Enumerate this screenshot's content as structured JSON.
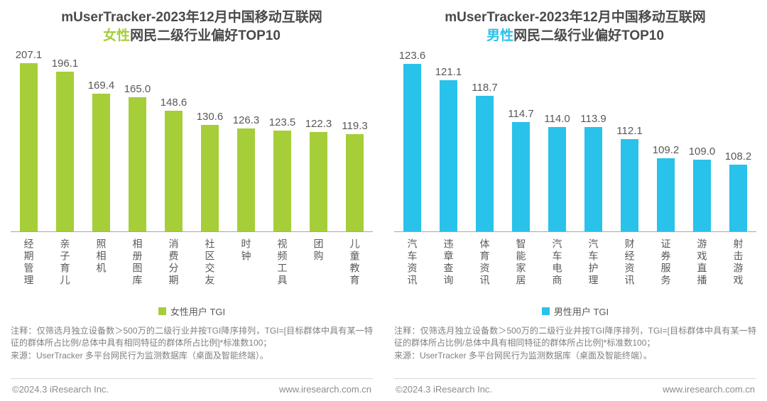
{
  "chart_data": [
    {
      "type": "bar",
      "title_line1": "mUserTracker-2023年12月中国移动互联网",
      "title_highlight": "女性",
      "title_rest": "网民二级行业偏好TOP10",
      "legend_label": "女性用户 TGI",
      "legend_position": "bottom",
      "grid": false,
      "bar_color": "#a5ce39",
      "categories": [
        "经期管理",
        "亲子育儿",
        "照相机",
        "相册图库",
        "消费分期",
        "社区交友",
        "时钟",
        "视频工具",
        "团购",
        "儿童教育"
      ],
      "values": [
        207.1,
        196.1,
        169.4,
        165.0,
        148.6,
        130.6,
        126.3,
        123.5,
        122.3,
        119.3
      ],
      "ylabel": "TGI",
      "ylim": [
        0,
        225
      ]
    },
    {
      "type": "bar",
      "title_line1": "mUserTracker-2023年12月中国移动互联网",
      "title_highlight": "男性",
      "title_rest": "网民二级行业偏好TOP10",
      "legend_label": "男性用户 TGI",
      "legend_position": "bottom",
      "grid": false,
      "bar_color": "#29c2ea",
      "categories": [
        "汽车资讯",
        "违章查询",
        "体育资讯",
        "智能家居",
        "汽车电商",
        "汽车护理",
        "财经资讯",
        "证券服务",
        "游戏直播",
        "射击游戏"
      ],
      "values": [
        123.6,
        121.1,
        118.7,
        114.7,
        114.0,
        113.9,
        112.1,
        109.2,
        109.0,
        108.2
      ],
      "ylabel": "TGI",
      "ylim": [
        98,
        126
      ]
    }
  ],
  "note": {
    "line1": "注释：仅筛选月独立设备数＞500万的二级行业并按TGI降序排列，TGI=[目标群体中具有某一特征的群体所占比例/总体中具有相同特征的群体所占比例]*标准数100；",
    "line2": "来源：UserTracker 多平台网民行为监测数据库（桌面及智能终端）。"
  },
  "footer": {
    "copyright": "©2024.3 iResearch Inc.",
    "website": "www.iresearch.com.cn"
  }
}
